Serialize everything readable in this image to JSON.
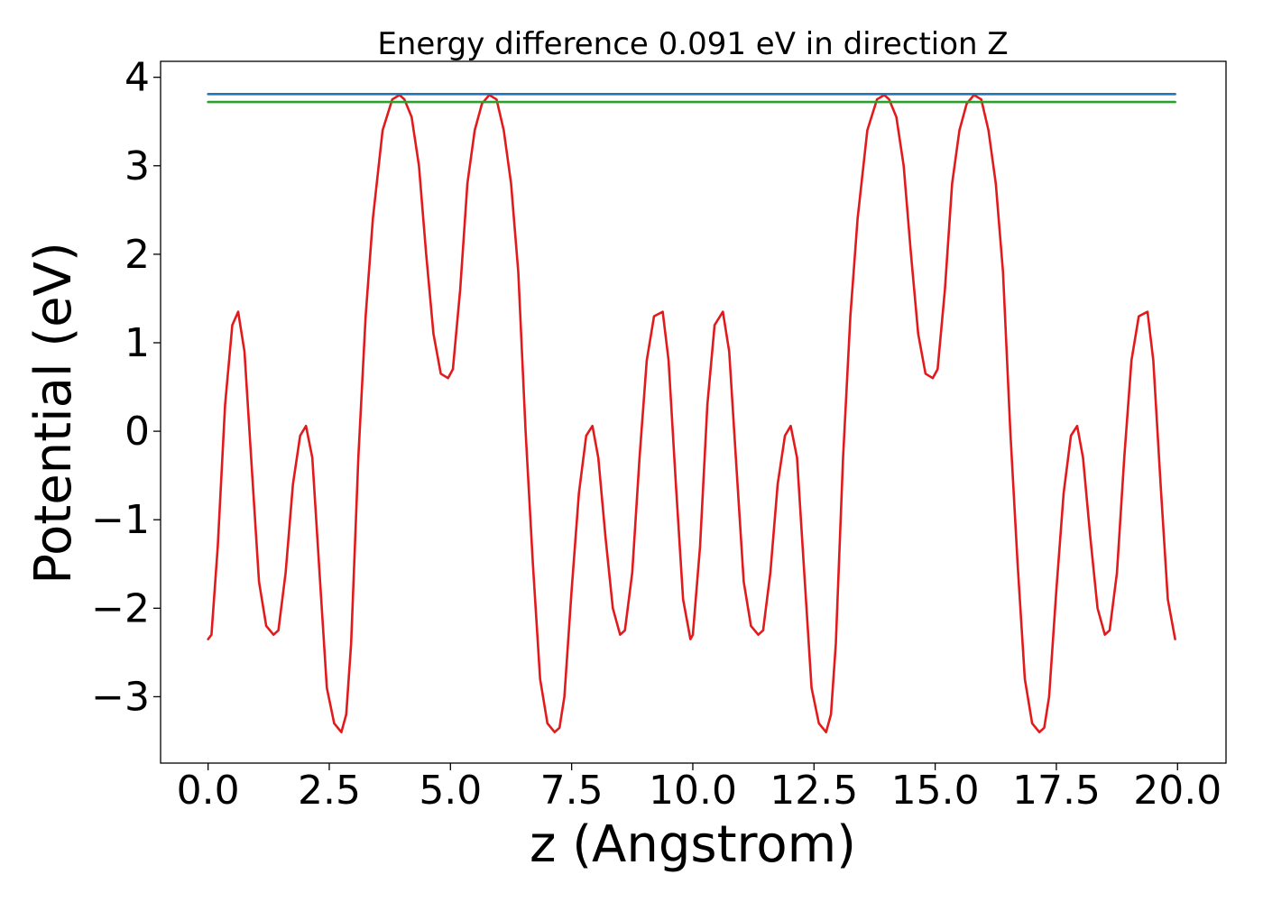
{
  "chart_data": {
    "type": "line",
    "title": "Energy difference 0.091 eV in direction Z",
    "xlabel": "z (Angstrom)",
    "ylabel": "Potential (eV)",
    "xlim": [
      -0.98,
      21.0
    ],
    "ylim": [
      -3.75,
      4.18
    ],
    "xticks": [
      0.0,
      2.5,
      5.0,
      7.5,
      10.0,
      12.5,
      15.0,
      17.5,
      20.0
    ],
    "xtick_labels": [
      "0.0",
      "2.5",
      "5.0",
      "7.5",
      "10.0",
      "12.5",
      "15.0",
      "17.5",
      "20.0"
    ],
    "yticks": [
      -3,
      -2,
      -1,
      0,
      1,
      2,
      3,
      4
    ],
    "ytick_labels": [
      "−3",
      "−2",
      "−1",
      "0",
      "1",
      "2",
      "3",
      "4"
    ],
    "grid": false,
    "series": [
      {
        "color": "#e31a1c",
        "x": [
          0.0,
          0.07,
          0.2,
          0.35,
          0.5,
          0.62,
          0.75,
          0.9,
          1.05,
          1.2,
          1.35,
          1.45,
          1.6,
          1.75,
          1.9,
          2.02,
          2.15,
          2.3,
          2.45,
          2.6,
          2.75,
          2.85,
          2.95,
          3.1,
          3.25,
          3.4,
          3.6,
          3.8,
          3.95,
          4.05,
          4.2,
          4.35,
          4.5,
          4.65,
          4.8,
          4.95,
          5.05,
          5.2,
          5.35,
          5.5,
          5.65,
          5.8,
          5.95,
          6.1,
          6.25,
          6.4,
          6.55,
          6.7,
          6.85,
          7.0,
          7.15,
          7.25,
          7.35,
          7.5,
          7.65,
          7.8,
          7.93,
          8.05,
          8.2,
          8.35,
          8.5,
          8.6,
          8.75,
          8.9,
          9.05,
          9.2,
          9.38,
          9.5,
          9.65,
          9.8,
          9.95,
          10.0,
          10.15,
          10.3,
          10.45,
          10.62,
          10.75,
          10.9,
          11.05,
          11.2,
          11.35,
          11.45,
          11.6,
          11.75,
          11.9,
          12.02,
          12.15,
          12.3,
          12.45,
          12.6,
          12.75,
          12.85,
          12.95,
          13.1,
          13.25,
          13.4,
          13.6,
          13.8,
          13.95,
          14.05,
          14.2,
          14.35,
          14.5,
          14.65,
          14.8,
          14.95,
          15.05,
          15.2,
          15.35,
          15.5,
          15.65,
          15.8,
          15.95,
          16.1,
          16.25,
          16.4,
          16.55,
          16.7,
          16.85,
          17.0,
          17.15,
          17.25,
          17.35,
          17.5,
          17.65,
          17.8,
          17.93,
          18.05,
          18.2,
          18.35,
          18.5,
          18.6,
          18.75,
          18.9,
          19.05,
          19.2,
          19.38,
          19.5,
          19.65,
          19.8,
          19.95
        ],
        "y": [
          -2.35,
          -2.3,
          -1.3,
          0.3,
          1.2,
          1.35,
          0.9,
          -0.4,
          -1.7,
          -2.2,
          -2.3,
          -2.25,
          -1.6,
          -0.6,
          -0.05,
          0.06,
          -0.3,
          -1.6,
          -2.9,
          -3.3,
          -3.4,
          -3.2,
          -2.4,
          -0.3,
          1.3,
          2.4,
          3.4,
          3.75,
          3.8,
          3.75,
          3.55,
          3.0,
          2.0,
          1.1,
          0.65,
          0.6,
          0.7,
          1.6,
          2.8,
          3.4,
          3.7,
          3.8,
          3.75,
          3.4,
          2.8,
          1.8,
          0.0,
          -1.5,
          -2.8,
          -3.3,
          -3.4,
          -3.35,
          -3.0,
          -1.8,
          -0.7,
          -0.05,
          0.06,
          -0.3,
          -1.2,
          -2.0,
          -2.3,
          -2.25,
          -1.6,
          -0.3,
          0.8,
          1.3,
          1.35,
          0.8,
          -0.6,
          -1.9,
          -2.35,
          -2.3,
          -1.3,
          0.3,
          1.2,
          1.35,
          0.9,
          -0.4,
          -1.7,
          -2.2,
          -2.3,
          -2.25,
          -1.6,
          -0.6,
          -0.05,
          0.06,
          -0.3,
          -1.6,
          -2.9,
          -3.3,
          -3.4,
          -3.2,
          -2.4,
          -0.3,
          1.3,
          2.4,
          3.4,
          3.75,
          3.8,
          3.75,
          3.55,
          3.0,
          2.0,
          1.1,
          0.65,
          0.6,
          0.7,
          1.6,
          2.8,
          3.4,
          3.7,
          3.8,
          3.75,
          3.4,
          2.8,
          1.8,
          0.0,
          -1.5,
          -2.8,
          -3.3,
          -3.4,
          -3.35,
          -3.0,
          -1.8,
          -0.7,
          -0.05,
          0.06,
          -0.3,
          -1.2,
          -2.0,
          -2.3,
          -2.25,
          -1.6,
          -0.3,
          0.8,
          1.3,
          1.35,
          0.8,
          -0.6,
          -1.9,
          -2.35
        ]
      },
      {
        "color": "#1f77b4",
        "x": [
          0.0,
          19.95
        ],
        "y": [
          3.81,
          3.81
        ]
      },
      {
        "color": "#2ca02c",
        "x": [
          0.0,
          19.95
        ],
        "y": [
          3.72,
          3.72
        ]
      }
    ]
  }
}
